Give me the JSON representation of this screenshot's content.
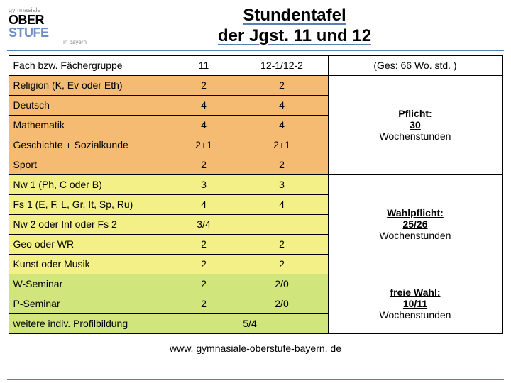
{
  "logo": {
    "top": "gymnasiale",
    "ober": "OBER",
    "stufe": "STUFE",
    "bottom": "in bayern"
  },
  "title_line1": "Stundentafel",
  "title_line2": "der Jgst. 11 und 12",
  "columns": {
    "c1": "Fach bzw. Fächergruppe",
    "c2": "11",
    "c3": "12-1/12-2",
    "c4": "(Ges: 66 Wo. std. )"
  },
  "colors": {
    "group1": "#f5bb72",
    "group2": "#f3f087",
    "group3": "#d0e67d"
  },
  "group1": {
    "rows": [
      {
        "label": "Religion (K, Ev oder Eth)",
        "v11": "2",
        "v12": "2"
      },
      {
        "label": "Deutsch",
        "v11": "4",
        "v12": "4"
      },
      {
        "label": "Mathematik",
        "v11": "4",
        "v12": "4"
      },
      {
        "label": "Geschichte + Sozialkunde",
        "v11": "2+1",
        "v12": "2+1"
      },
      {
        "label": "Sport",
        "v11": "2",
        "v12": "2"
      }
    ],
    "summary_bold": "Pflicht:",
    "summary_mid": "30",
    "summary_low": "Wochenstunden"
  },
  "group2": {
    "rows": [
      {
        "label": "Nw 1 (Ph, C oder B)",
        "v11": "3",
        "v12": "3"
      },
      {
        "label": "Fs 1 (E, F, L, Gr, It, Sp, Ru)",
        "v11": "4",
        "v12": "4"
      },
      {
        "label": "Nw 2 oder Inf oder Fs 2",
        "v11": "3/4",
        "v12": ""
      },
      {
        "label": "Geo oder WR",
        "v11": "2",
        "v12": "2"
      },
      {
        "label": "Kunst oder Musik",
        "v11": "2",
        "v12": "2"
      }
    ],
    "summary_bold": "Wahlpflicht:",
    "summary_mid": "25/26",
    "summary_low": "Wochenstunden"
  },
  "group3": {
    "rows": [
      {
        "label": "W-Seminar",
        "v11": "2",
        "v12": "2/0"
      },
      {
        "label": "P-Seminar",
        "v11": "2",
        "v12": "2/0"
      },
      {
        "label": "weitere indiv. Profilbildung",
        "v11": "",
        "v12": "5/4",
        "colspan": true
      }
    ],
    "summary_bold": "freie Wahl:",
    "summary_mid": "10/11",
    "summary_low": "Wochenstunden"
  },
  "footer": "www. gymnasiale-oberstufe-bayern. de"
}
